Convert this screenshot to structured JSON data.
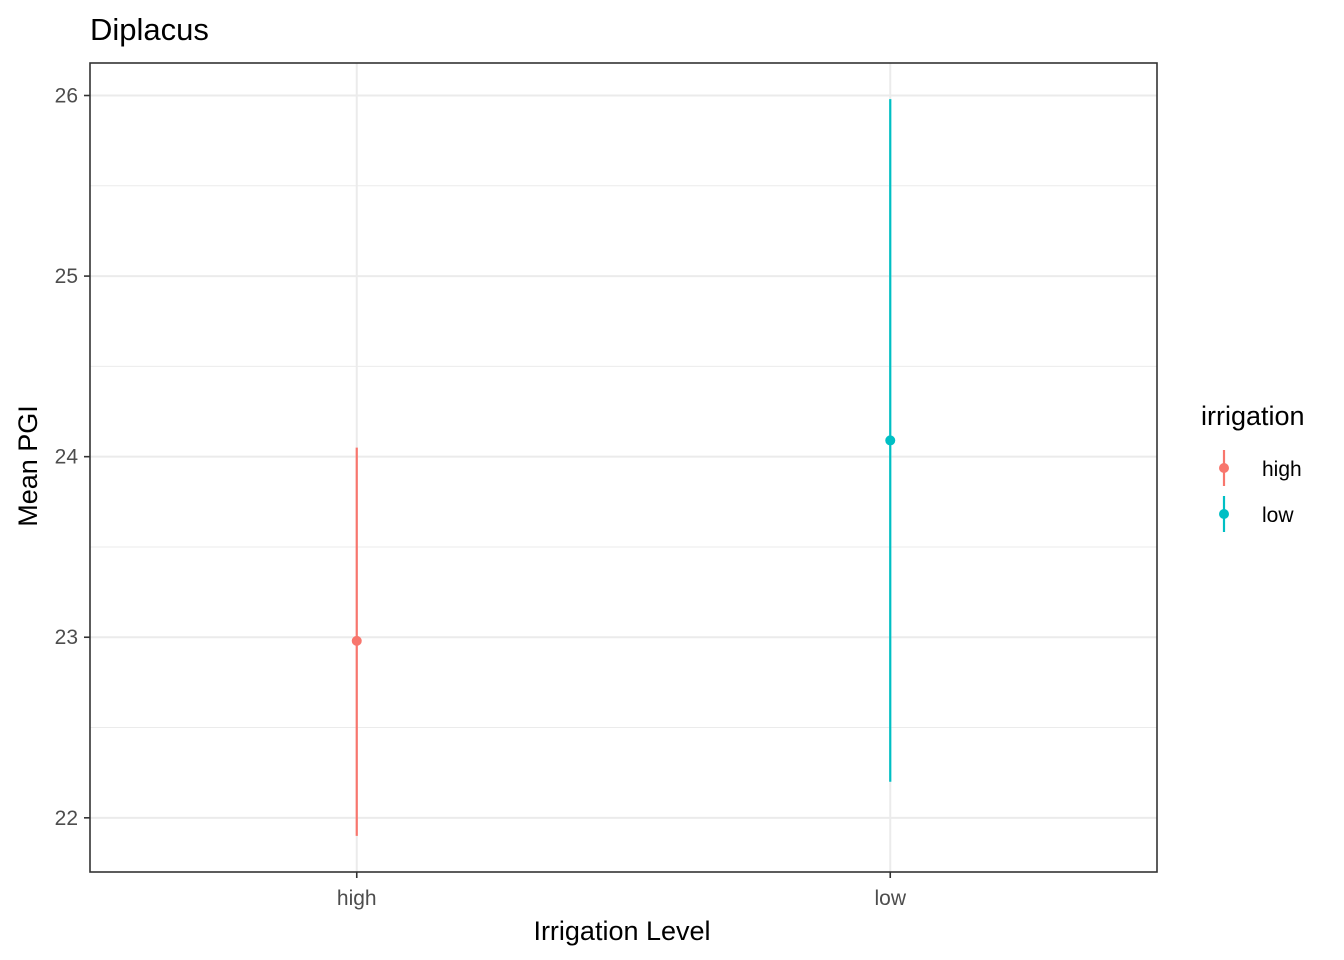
{
  "chart_data": {
    "type": "errorbar",
    "title": "Diplacus",
    "xlabel": "Irrigation Level",
    "ylabel": "Mean PGI",
    "categories": [
      "high",
      "low"
    ],
    "ylim": [
      21.7,
      26.18
    ],
    "y_ticks": [
      22,
      23,
      24,
      25,
      26
    ],
    "grid": true,
    "legend": {
      "title": "irrigation",
      "position": "right",
      "entries": [
        "high",
        "low"
      ]
    },
    "series": [
      {
        "name": "high",
        "color": "#F8766D",
        "mean": 22.98,
        "lower": 21.9,
        "upper": 24.05
      },
      {
        "name": "low",
        "color": "#00BFC4",
        "mean": 24.09,
        "lower": 22.2,
        "upper": 25.98
      }
    ]
  }
}
